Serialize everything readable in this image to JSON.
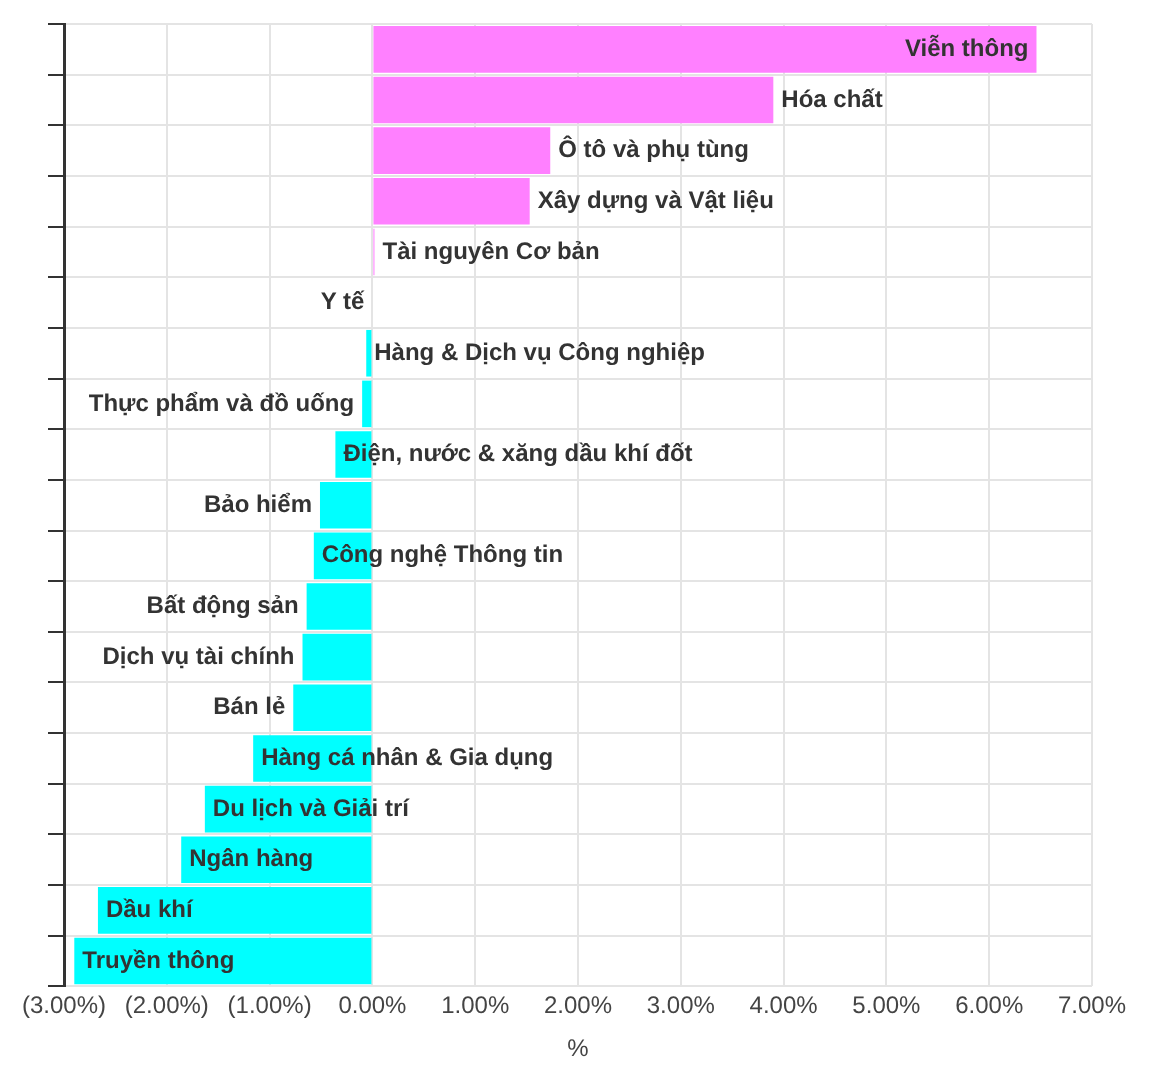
{
  "chart_data": {
    "type": "bar",
    "orientation": "horizontal",
    "xlabel": "%",
    "categories": [
      "Viễn thông",
      "Hóa chất",
      "Ô tô và phụ tùng",
      "Xây dựng và Vật liệu",
      "Tài nguyên Cơ bản",
      "Y tế",
      "Hàng & Dịch vụ Công nghiệp",
      "Thực phẩm và đồ uống",
      "Điện, nước & xăng dầu khí đốt",
      "Bảo hiểm",
      "Công nghệ Thông tin",
      "Bất động sản",
      "Dịch vụ tài chính",
      "Bán lẻ",
      "Hàng cá nhân & Gia dụng",
      "Du lịch và Giải trí",
      "Ngân hàng",
      "Dầu khí",
      "Truyền thông"
    ],
    "values": [
      6.46,
      3.9,
      1.73,
      1.53,
      0.02,
      null,
      -0.06,
      -0.1,
      -0.36,
      -0.51,
      -0.57,
      -0.64,
      -0.68,
      -0.77,
      -1.16,
      -1.63,
      -1.86,
      -2.67,
      -2.9
    ],
    "colors": [
      "#ff80ff",
      "#ff80ff",
      "#ff80ff",
      "#ff80ff",
      "#ff80ff",
      "#00ffff",
      "#00ffff",
      "#00ffff",
      "#00ffff",
      "#00ffff",
      "#00ffff",
      "#00ffff",
      "#00ffff",
      "#00ffff",
      "#00ffff",
      "#00ffff",
      "#00ffff",
      "#00ffff",
      "#00ffff"
    ],
    "xlim": [
      -3,
      7
    ],
    "xticks": [
      {
        "value": -3,
        "label": "(3.00%)"
      },
      {
        "value": -2,
        "label": "(2.00%)"
      },
      {
        "value": -1,
        "label": "(1.00%)"
      },
      {
        "value": 0,
        "label": "0.00%"
      },
      {
        "value": 1,
        "label": "1.00%"
      },
      {
        "value": 2,
        "label": "2.00%"
      },
      {
        "value": 3,
        "label": "3.00%"
      },
      {
        "value": 4,
        "label": "4.00%"
      },
      {
        "value": 5,
        "label": "5.00%"
      },
      {
        "value": 6,
        "label": "6.00%"
      },
      {
        "value": 7,
        "label": "7.00%"
      }
    ],
    "grid": true,
    "tick_labels": "x"
  }
}
